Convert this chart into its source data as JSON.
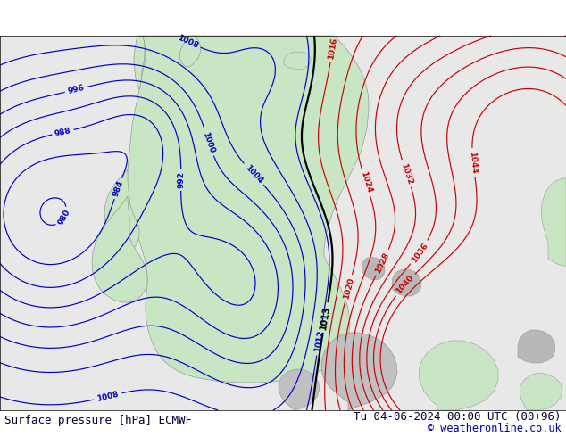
{
  "title_left": "Surface pressure [hPa] ECMWF",
  "title_right": "Tu 04-06-2024 00:00 UTC (00+96)",
  "copyright": "© weatheronline.co.uk",
  "bg_color": "#ffffff",
  "ocean_color": "#e8e8e8",
  "land_color": "#c8e6c4",
  "gray_color": "#b0b0b0",
  "blue_contour_color": "#0000cc",
  "red_contour_color": "#cc0000",
  "black_contour_color": "#000000",
  "footer_text_color": "#000033",
  "copyright_color": "#0000aa"
}
